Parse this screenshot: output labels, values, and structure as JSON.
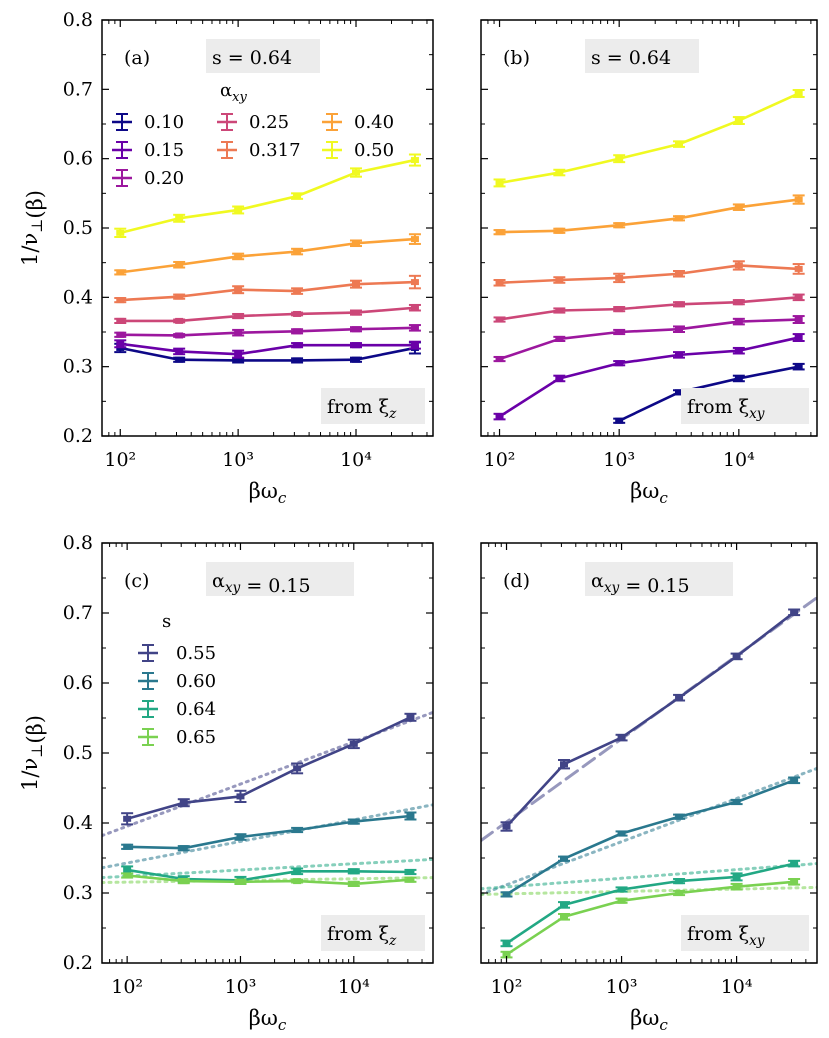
{
  "x_axis_label": "βω_c",
  "y_axis_label": "1/ν_⊥(β)",
  "chart_data": [
    {
      "type": "line",
      "panel": "(a)",
      "title": "s = 0.64",
      "corner_label": "from ξ_z",
      "xlabel": "βω_c",
      "ylabel": "1/ν_⊥(β)",
      "xscale": "log",
      "xlim": [
        70,
        45000
      ],
      "ylim": [
        0.2,
        0.8
      ],
      "x_ticks": [
        "10²",
        "10³",
        "10⁴"
      ],
      "y_ticks": [
        "0.2",
        "0.3",
        "0.4",
        "0.5",
        "0.6",
        "0.7",
        "0.8"
      ],
      "legend_title": "α_xy",
      "legend_position": "top-left",
      "x": [
        100,
        316,
        1000,
        3162,
        10000,
        31623
      ],
      "series": [
        {
          "name": "0.10",
          "color": "#0d0887",
          "values": [
            0.327,
            0.31,
            0.309,
            0.309,
            0.31,
            0.327
          ],
          "errors": [
            0.006,
            0.003,
            0.003,
            0.003,
            0.003,
            0.008
          ]
        },
        {
          "name": "0.15",
          "color": "#6a00a8",
          "values": [
            0.333,
            0.322,
            0.318,
            0.331,
            0.331,
            0.331
          ],
          "errors": [
            0.005,
            0.004,
            0.005,
            0.003,
            0.003,
            0.005
          ]
        },
        {
          "name": "0.20",
          "color": "#9c179e",
          "values": [
            0.346,
            0.345,
            0.349,
            0.351,
            0.354,
            0.356
          ],
          "errors": [
            0.003,
            0.002,
            0.004,
            0.003,
            0.003,
            0.004
          ]
        },
        {
          "name": "0.25",
          "color": "#cc4778",
          "values": [
            0.366,
            0.366,
            0.373,
            0.376,
            0.378,
            0.385
          ],
          "errors": [
            0.003,
            0.002,
            0.003,
            0.002,
            0.003,
            0.004
          ]
        },
        {
          "name": "0.317",
          "color": "#ed7953",
          "values": [
            0.396,
            0.401,
            0.411,
            0.409,
            0.419,
            0.422
          ],
          "errors": [
            0.003,
            0.003,
            0.005,
            0.004,
            0.005,
            0.009
          ]
        },
        {
          "name": "0.40",
          "color": "#fba238",
          "values": [
            0.436,
            0.447,
            0.459,
            0.466,
            0.478,
            0.484
          ],
          "errors": [
            0.003,
            0.004,
            0.004,
            0.004,
            0.004,
            0.007
          ]
        },
        {
          "name": "0.50",
          "color": "#f0f921",
          "values": [
            0.493,
            0.514,
            0.526,
            0.546,
            0.58,
            0.598
          ],
          "errors": [
            0.006,
            0.005,
            0.005,
            0.004,
            0.006,
            0.008
          ]
        }
      ]
    },
    {
      "type": "line",
      "panel": "(b)",
      "title": "s = 0.64",
      "corner_label": "from ξ_xy",
      "xlabel": "βω_c",
      "xscale": "log",
      "xlim": [
        70,
        45000
      ],
      "ylim": [
        0.2,
        0.8
      ],
      "x_ticks": [
        "10²",
        "10³",
        "10⁴"
      ],
      "x": [
        100,
        316,
        1000,
        3162,
        10000,
        31623
      ],
      "series": [
        {
          "name": "0.10",
          "color": "#0d0887",
          "values": [
            null,
            null,
            0.222,
            0.263,
            0.283,
            0.3
          ],
          "errors": [
            0,
            0,
            0.003,
            0.003,
            0.004,
            0.004
          ]
        },
        {
          "name": "0.15",
          "color": "#6a00a8",
          "values": [
            0.228,
            0.283,
            0.305,
            0.317,
            0.323,
            0.342
          ],
          "errors": [
            0.004,
            0.004,
            0.003,
            0.004,
            0.004,
            0.005
          ]
        },
        {
          "name": "0.20",
          "color": "#9c179e",
          "values": [
            0.311,
            0.34,
            0.35,
            0.354,
            0.365,
            0.368
          ],
          "errors": [
            0.003,
            0.003,
            0.003,
            0.004,
            0.004,
            0.005
          ]
        },
        {
          "name": "0.25",
          "color": "#cc4778",
          "values": [
            0.368,
            0.381,
            0.383,
            0.39,
            0.393,
            0.4
          ],
          "errors": [
            0.003,
            0.003,
            0.003,
            0.003,
            0.003,
            0.004
          ]
        },
        {
          "name": "0.317",
          "color": "#ed7953",
          "values": [
            0.421,
            0.425,
            0.428,
            0.434,
            0.446,
            0.441
          ],
          "errors": [
            0.004,
            0.004,
            0.006,
            0.004,
            0.006,
            0.007
          ]
        },
        {
          "name": "0.40",
          "color": "#fba238",
          "values": [
            0.494,
            0.496,
            0.504,
            0.514,
            0.53,
            0.541
          ],
          "errors": [
            0.003,
            0.003,
            0.003,
            0.003,
            0.004,
            0.006
          ]
        },
        {
          "name": "0.50",
          "color": "#f0f921",
          "values": [
            0.565,
            0.58,
            0.6,
            0.621,
            0.655,
            0.694
          ],
          "errors": [
            0.005,
            0.004,
            0.005,
            0.004,
            0.005,
            0.005
          ]
        }
      ]
    },
    {
      "type": "line",
      "panel": "(c)",
      "title": "α_xy = 0.15",
      "corner_label": "from ξ_z",
      "xlabel": "βω_c",
      "ylabel": "1/ν_⊥(β)",
      "xscale": "log",
      "xlim": [
        60,
        50000
      ],
      "ylim": [
        0.2,
        0.8
      ],
      "x_ticks": [
        "10²",
        "10³",
        "10⁴"
      ],
      "y_ticks": [
        "0.2",
        "0.3",
        "0.4",
        "0.5",
        "0.6",
        "0.7",
        "0.8"
      ],
      "legend_title": "s",
      "legend_position": "top-left",
      "x": [
        100,
        316,
        1000,
        3162,
        10000,
        31623
      ],
      "series": [
        {
          "name": "0.55",
          "color": "#414487",
          "values": [
            0.406,
            0.429,
            0.438,
            0.478,
            0.513,
            0.551
          ],
          "errors": [
            0.008,
            0.005,
            0.008,
            0.007,
            0.006,
            0.005
          ],
          "fit": {
            "style": "dotted",
            "x": [
              60,
              50000
            ],
            "y": [
              0.382,
              0.558
            ]
          }
        },
        {
          "name": "0.60",
          "color": "#2a788e",
          "values": [
            0.366,
            0.364,
            0.38,
            0.39,
            0.402,
            0.41
          ],
          "errors": [
            0.003,
            0.003,
            0.004,
            0.003,
            0.003,
            0.005
          ],
          "fit": {
            "style": "dotted",
            "x": [
              60,
              50000
            ],
            "y": [
              0.336,
              0.426
            ]
          }
        },
        {
          "name": "0.64",
          "color": "#22a884",
          "values": [
            0.333,
            0.32,
            0.318,
            0.331,
            0.331,
            0.33
          ],
          "errors": [
            0.005,
            0.004,
            0.005,
            0.004,
            0.003,
            0.003
          ],
          "fit": {
            "style": "dotted",
            "x": [
              60,
              50000
            ],
            "y": [
              0.322,
              0.348
            ]
          }
        },
        {
          "name": "0.65",
          "color": "#7ad151",
          "values": [
            0.325,
            0.317,
            0.316,
            0.317,
            0.313,
            0.319
          ],
          "errors": [
            0.003,
            0.003,
            0.003,
            0.002,
            0.003,
            0.003
          ],
          "fit": {
            "style": "dotted",
            "x": [
              60,
              50000
            ],
            "y": [
              0.315,
              0.322
            ]
          }
        }
      ]
    },
    {
      "type": "line",
      "panel": "(d)",
      "title": "α_xy = 0.15",
      "corner_label": "from ξ_xy",
      "xlabel": "βω_c",
      "xscale": "log",
      "xlim": [
        60,
        50000
      ],
      "ylim": [
        0.2,
        0.8
      ],
      "x_ticks": [
        "10²",
        "10³",
        "10⁴"
      ],
      "x": [
        100,
        316,
        1000,
        3162,
        10000,
        31623
      ],
      "series": [
        {
          "name": "0.55",
          "color": "#414487",
          "values": [
            0.395,
            0.484,
            0.522,
            0.579,
            0.638,
            0.701
          ],
          "errors": [
            0.006,
            0.006,
            0.004,
            0.004,
            0.004,
            0.004
          ],
          "fit": {
            "style": "dashed",
            "x": [
              60,
              50000
            ],
            "y": [
              0.375,
              0.722
            ]
          }
        },
        {
          "name": "0.60",
          "color": "#2a788e",
          "values": [
            0.298,
            0.349,
            0.385,
            0.409,
            0.43,
            0.461
          ],
          "errors": [
            0.003,
            0.003,
            0.003,
            0.003,
            0.003,
            0.004
          ],
          "fit": {
            "style": "dotted",
            "x": [
              60,
              50000
            ],
            "y": [
              0.298,
              0.478
            ]
          }
        },
        {
          "name": "0.64",
          "color": "#22a884",
          "values": [
            0.228,
            0.283,
            0.305,
            0.317,
            0.323,
            0.342
          ],
          "errors": [
            0.004,
            0.004,
            0.003,
            0.003,
            0.005,
            0.004
          ],
          "fit": {
            "style": "dotted",
            "x": [
              60,
              50000
            ],
            "y": [
              0.306,
              0.342
            ]
          }
        },
        {
          "name": "0.65",
          "color": "#7ad151",
          "values": [
            0.212,
            0.266,
            0.289,
            0.3,
            0.309,
            0.316
          ],
          "errors": [
            0.004,
            0.004,
            0.003,
            0.003,
            0.004,
            0.004
          ],
          "fit": {
            "style": "dotted",
            "x": [
              60,
              50000
            ],
            "y": [
              0.298,
              0.308
            ]
          }
        }
      ]
    }
  ]
}
